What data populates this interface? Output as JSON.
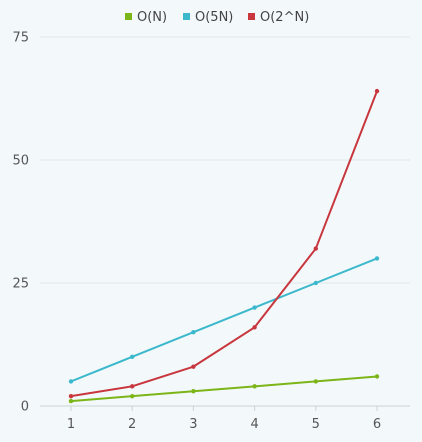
{
  "chart_data": {
    "type": "line",
    "x": [
      1,
      2,
      3,
      4,
      5,
      6
    ],
    "series": [
      {
        "name": "O(N)",
        "color": "#7cb518",
        "values": [
          1,
          2,
          3,
          4,
          5,
          6
        ]
      },
      {
        "name": "O(5N)",
        "color": "#3cb8cc",
        "values": [
          5,
          10,
          15,
          20,
          25,
          30
        ]
      },
      {
        "name": "O(2^N)",
        "color": "#c8363e",
        "values": [
          2,
          4,
          8,
          16,
          32,
          64
        ]
      }
    ],
    "ylim": [
      0,
      75
    ],
    "yticks": [
      0,
      25,
      50,
      75
    ],
    "xticks": [
      1,
      2,
      3,
      4,
      5,
      6
    ],
    "grid": "horizontal",
    "legend_position": "top-center"
  }
}
